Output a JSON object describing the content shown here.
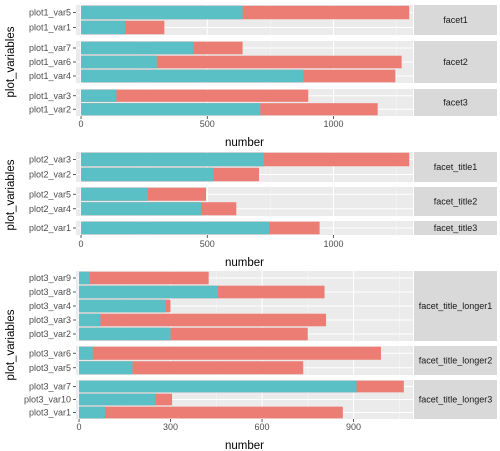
{
  "colors": {
    "panel_bg": "#ebebeb",
    "grid_major": "#ffffff",
    "grid_minor": "#f5f5f5",
    "strip_bg": "#d9d9d9",
    "series_total": "#ec7d74",
    "series_part": "#5bc0c6"
  },
  "chart_data": [
    {
      "type": "bar",
      "orientation": "horizontal",
      "stacked": "overlay",
      "xlabel": "number",
      "ylabel": "plot_variables",
      "xlim": [
        -20,
        1315
      ],
      "xticks": [
        0,
        500,
        1000
      ],
      "grid": true,
      "legend": "none",
      "facets": [
        {
          "label": "facet1",
          "bars": [
            {
              "category": "plot1_var5",
              "part": 640,
              "total": 1300
            },
            {
              "category": "plot1_var1",
              "part": 175,
              "total": 330
            }
          ]
        },
        {
          "label": "facet2",
          "bars": [
            {
              "category": "plot1_var7",
              "part": 445,
              "total": 640
            },
            {
              "category": "plot1_var6",
              "part": 300,
              "total": 1270
            },
            {
              "category": "plot1_var4",
              "part": 880,
              "total": 1245
            }
          ]
        },
        {
          "label": "facet3",
          "bars": [
            {
              "category": "plot1_var3",
              "part": 140,
              "total": 900
            },
            {
              "category": "plot1_var2",
              "part": 710,
              "total": 1175
            }
          ]
        }
      ]
    },
    {
      "type": "bar",
      "orientation": "horizontal",
      "stacked": "overlay",
      "xlabel": "number",
      "ylabel": "plot_variables",
      "xlim": [
        -20,
        1315
      ],
      "xticks": [
        0,
        500,
        1000
      ],
      "grid": true,
      "legend": "none",
      "facets": [
        {
          "label": "facet_title1",
          "bars": [
            {
              "category": "plot2_var3",
              "part": 725,
              "total": 1300
            },
            {
              "category": "plot2_var2",
              "part": 525,
              "total": 705
            }
          ]
        },
        {
          "label": "facet_title2",
          "bars": [
            {
              "category": "plot2_var5",
              "part": 265,
              "total": 495
            },
            {
              "category": "plot2_var4",
              "part": 475,
              "total": 615
            }
          ]
        },
        {
          "label": "facet_title3",
          "bars": [
            {
              "category": "plot2_var1",
              "part": 745,
              "total": 945
            }
          ]
        }
      ]
    },
    {
      "type": "bar",
      "orientation": "horizontal",
      "stacked": "overlay",
      "xlabel": "number",
      "ylabel": "plot_variables",
      "xlim": [
        -10,
        1095
      ],
      "xticks": [
        0,
        300,
        600,
        900
      ],
      "grid": true,
      "legend": "none",
      "facets": [
        {
          "label": "facet_title_longer1",
          "bars": [
            {
              "category": "plot3_var9",
              "part": 35,
              "total": 425
            },
            {
              "category": "plot3_var8",
              "part": 455,
              "total": 805
            },
            {
              "category": "plot3_var4",
              "part": 285,
              "total": 300
            },
            {
              "category": "plot3_var3",
              "part": 70,
              "total": 810
            },
            {
              "category": "plot3_var2",
              "part": 300,
              "total": 750
            }
          ]
        },
        {
          "label": "facet_title_longer2",
          "bars": [
            {
              "category": "plot3_var6",
              "part": 45,
              "total": 990
            },
            {
              "category": "plot3_var5",
              "part": 175,
              "total": 735
            }
          ]
        },
        {
          "label": "facet_title_longer3",
          "bars": [
            {
              "category": "plot3_var7",
              "part": 910,
              "total": 1065
            },
            {
              "category": "plot3_var10",
              "part": 250,
              "total": 305
            },
            {
              "category": "plot3_var1",
              "part": 85,
              "total": 865
            }
          ]
        }
      ]
    }
  ]
}
